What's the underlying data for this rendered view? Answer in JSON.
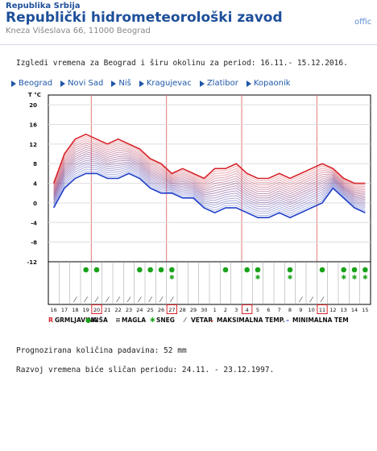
{
  "header": {
    "country": "Republika Srbija",
    "institute": "Republički hidrometeorološki zavod",
    "address": "Kneza Višeslava 66, 11000 Beograd",
    "right_link": "offic"
  },
  "intro_text": "Izgledi vremena za Beograd i širu okolinu za period: 16.11.- 15.12.2016.",
  "city_links": [
    "Beograd",
    "Novi Sad",
    "Niš",
    "Kragujevac",
    "Zlatibor",
    "Kopaonik"
  ],
  "chart_data": {
    "type": "area",
    "ylabel": "T °C",
    "yticks": [
      20,
      16,
      12,
      8,
      4,
      0,
      -4,
      -8,
      -12
    ],
    "ylim": [
      -12,
      22
    ],
    "days": [
      "16",
      "17",
      "18",
      "19",
      "20",
      "21",
      "22",
      "23",
      "24",
      "25",
      "26",
      "27",
      "28",
      "29",
      "30",
      "1",
      "2",
      "3",
      "4",
      "5",
      "6",
      "7",
      "8",
      "9",
      "10",
      "11",
      "12",
      "13",
      "14",
      "15"
    ],
    "boxed_days": [
      "20",
      "27",
      "4",
      "11"
    ],
    "series": [
      {
        "name": "MAKSIMALNA TEMP.",
        "color": "#d8232a",
        "values": [
          4,
          10,
          13,
          14,
          13,
          12,
          13,
          12,
          11,
          9,
          8,
          6,
          7,
          6,
          5,
          7,
          7,
          8,
          6,
          5,
          5,
          6,
          5,
          6,
          7,
          8,
          7,
          5,
          4,
          4
        ]
      },
      {
        "name": "MINIMALNA TEMP.",
        "color": "#1f3ec8",
        "values": [
          -1,
          3,
          5,
          6,
          6,
          5,
          5,
          6,
          5,
          3,
          2,
          2,
          1,
          1,
          -1,
          -2,
          -1,
          -1,
          -2,
          -3,
          -3,
          -2,
          -3,
          -2,
          -1,
          0,
          3,
          1,
          -1,
          -2
        ]
      }
    ],
    "rain_days": [
      "19",
      "20",
      "24",
      "25",
      "26",
      "27",
      "2",
      "4",
      "5",
      "8",
      "11",
      "13",
      "14",
      "15"
    ],
    "snow_days": [
      "27",
      "5",
      "8",
      "13",
      "14",
      "15"
    ],
    "wind_days": [
      "18",
      "19",
      "20",
      "21",
      "22",
      "23",
      "24",
      "25",
      "26",
      "27",
      "9",
      "10",
      "11"
    ],
    "legend": [
      {
        "symbol": "R",
        "label": "GRMLJAVINA",
        "color": "#d8232a"
      },
      {
        "symbol": "●",
        "label": "KIŠA",
        "color": "#1aa21a"
      },
      {
        "symbol": "≡",
        "label": "MAGLA",
        "color": "#555555"
      },
      {
        "symbol": "✱",
        "label": "SNEG",
        "color": "#1aa21a"
      },
      {
        "symbol": "⁄",
        "label": "VETAR",
        "color": "#555555"
      },
      {
        "symbol": "–",
        "label": "MAKSIMALNA TEMP.",
        "color": "#d8232a"
      },
      {
        "symbol": "–",
        "label": "MINIMALNA TEM",
        "color": "#1f3ec8"
      }
    ]
  },
  "precipitation": {
    "label": "Prognozirana količina padavina:",
    "value": "52",
    "unit": "mm"
  },
  "similar_period": "Razvoj vremena biće sličan periodu: 24.11. - 23.12.1997."
}
